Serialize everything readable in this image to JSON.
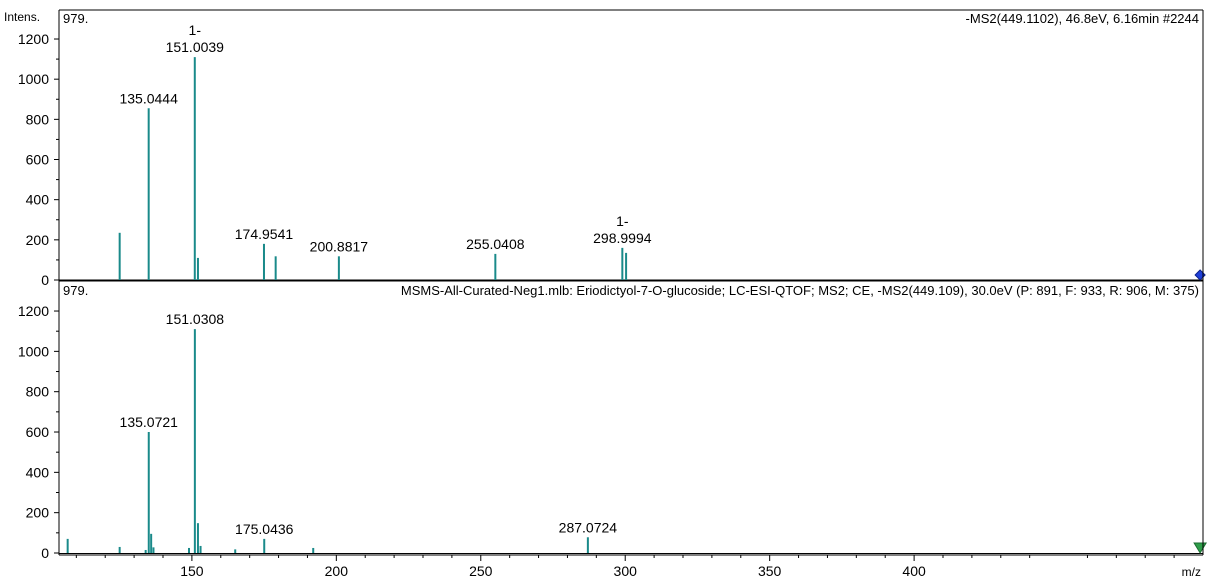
{
  "chart_data": [
    {
      "type": "bar",
      "panel": "top",
      "header_left": "979.",
      "title": "-MS2(449.1102), 46.8eV, 6.16min #2244",
      "ylabel": "Intens.",
      "xlabel": "m/z",
      "xlim": [
        104,
        500
      ],
      "ylim": [
        0,
        1220
      ],
      "yticks": [
        0,
        200,
        400,
        600,
        800,
        1000,
        1200
      ],
      "grid": false,
      "bar_color": "#1a8a8a",
      "marker": {
        "shape": "diamond",
        "x": 499,
        "y": 25,
        "color": "#1f3fd8"
      },
      "peaks": [
        {
          "x": 125.0,
          "y": 235
        },
        {
          "x": 135.0444,
          "y": 855,
          "label": "135.0444"
        },
        {
          "x": 151.0039,
          "y": 1110,
          "label": "151.0039",
          "prefix": "1-"
        },
        {
          "x": 152.1,
          "y": 110
        },
        {
          "x": 174.9541,
          "y": 180,
          "label": "174.9541"
        },
        {
          "x": 179.0,
          "y": 118
        },
        {
          "x": 200.8817,
          "y": 118,
          "label": "200.8817"
        },
        {
          "x": 255.0408,
          "y": 130,
          "label": "255.0408"
        },
        {
          "x": 298.9994,
          "y": 160,
          "label": "298.9994",
          "prefix": "1-"
        },
        {
          "x": 300.3,
          "y": 135
        }
      ]
    },
    {
      "type": "bar",
      "panel": "bottom",
      "header_left": "979.",
      "title": "MSMS-All-Curated-Neg1.mlb: Eriodictyol-7-O-glucoside; LC-ESI-QTOF; MS2; CE,  -MS2(449.109), 30.0eV (P: 891, F: 933, R: 906, M: 375)",
      "xlabel": "m/z",
      "xlim": [
        104,
        500
      ],
      "ylim": [
        0,
        1220
      ],
      "yticks": [
        0,
        200,
        400,
        600,
        800,
        1000,
        1200
      ],
      "xticks": [
        150,
        200,
        250,
        300,
        350,
        400
      ],
      "grid": false,
      "bar_color": "#1a8a8a",
      "marker": {
        "shape": "triangle-down",
        "x": 499,
        "y": 25,
        "color": "#2e9e4a"
      },
      "peaks": [
        {
          "x": 107.0,
          "y": 70
        },
        {
          "x": 125.0,
          "y": 30
        },
        {
          "x": 134.0,
          "y": 15
        },
        {
          "x": 135.0721,
          "y": 600,
          "label": "135.0721"
        },
        {
          "x": 135.9,
          "y": 95
        },
        {
          "x": 136.7,
          "y": 28
        },
        {
          "x": 149.0,
          "y": 25
        },
        {
          "x": 151.0308,
          "y": 1110,
          "label": "151.0308"
        },
        {
          "x": 152.1,
          "y": 148
        },
        {
          "x": 153.0,
          "y": 35
        },
        {
          "x": 165.0,
          "y": 18
        },
        {
          "x": 175.0436,
          "y": 70,
          "label": "175.0436"
        },
        {
          "x": 192.0,
          "y": 25
        },
        {
          "x": 287.0724,
          "y": 78,
          "label": "287.0724"
        }
      ]
    }
  ]
}
